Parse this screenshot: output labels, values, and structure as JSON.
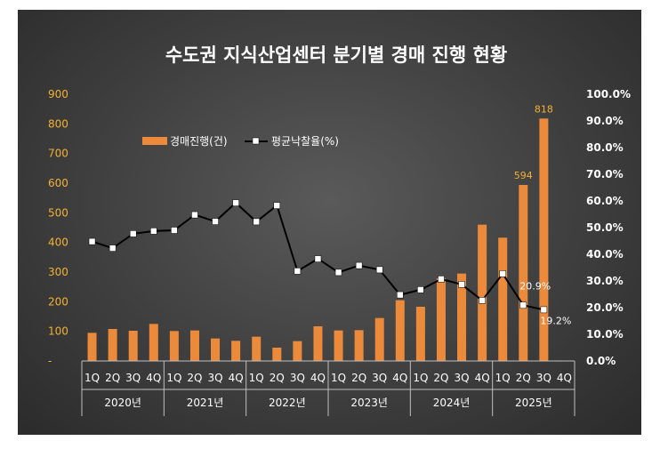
{
  "chart_data": {
    "type": "bar",
    "title": "수도권 지식산업센터 분기별 경매 진행 현황",
    "quarters": [
      "1Q",
      "2Q",
      "3Q",
      "4Q",
      "1Q",
      "2Q",
      "3Q",
      "4Q",
      "1Q",
      "2Q",
      "3Q",
      "4Q",
      "1Q",
      "2Q",
      "3Q",
      "4Q",
      "1Q",
      "2Q",
      "3Q",
      "4Q",
      "1Q",
      "2Q",
      "3Q",
      "4Q"
    ],
    "years": [
      "2020년",
      "2021년",
      "2022년",
      "2023년",
      "2024년",
      "2025년"
    ],
    "series": [
      {
        "name": "경매진행(건)",
        "kind": "bar",
        "axis": "left",
        "color": "#ec8a3c",
        "values": [
          95,
          108,
          102,
          125,
          101,
          103,
          76,
          68,
          82,
          45,
          67,
          117,
          103,
          104,
          145,
          205,
          183,
          279,
          295,
          460,
          416,
          594,
          818,
          null
        ]
      },
      {
        "name": "평균낙찰율(%)",
        "kind": "line",
        "axis": "right",
        "color": "#000000",
        "values": [
          44.8,
          42.3,
          47.7,
          48.7,
          49.0,
          54.8,
          52.3,
          59.3,
          52.2,
          58.3,
          33.7,
          38.3,
          33.2,
          35.8,
          34.2,
          24.8,
          26.7,
          30.7,
          28.7,
          22.7,
          32.7,
          20.9,
          19.2,
          null
        ]
      }
    ],
    "y_left": {
      "min": 0,
      "max": 900,
      "step": 100,
      "ticks": [
        "-",
        "100",
        "200",
        "300",
        "400",
        "500",
        "600",
        "700",
        "800",
        "900"
      ]
    },
    "y_right": {
      "min": 0,
      "max": 100,
      "step": 10,
      "ticks": [
        "0.0%",
        "10.0%",
        "20.0%",
        "30.0%",
        "40.0%",
        "50.0%",
        "60.0%",
        "70.0%",
        "80.0%",
        "90.0%",
        "100.0%"
      ]
    },
    "annotations": {
      "bar_labels": [
        {
          "index": 21,
          "text": "594"
        },
        {
          "index": 22,
          "text": "818"
        }
      ],
      "line_labels": [
        {
          "index": 21,
          "text": "20.9%"
        },
        {
          "index": 22,
          "text": "19.2%"
        }
      ]
    },
    "legend": {
      "position": "top-left"
    },
    "grid": false
  }
}
